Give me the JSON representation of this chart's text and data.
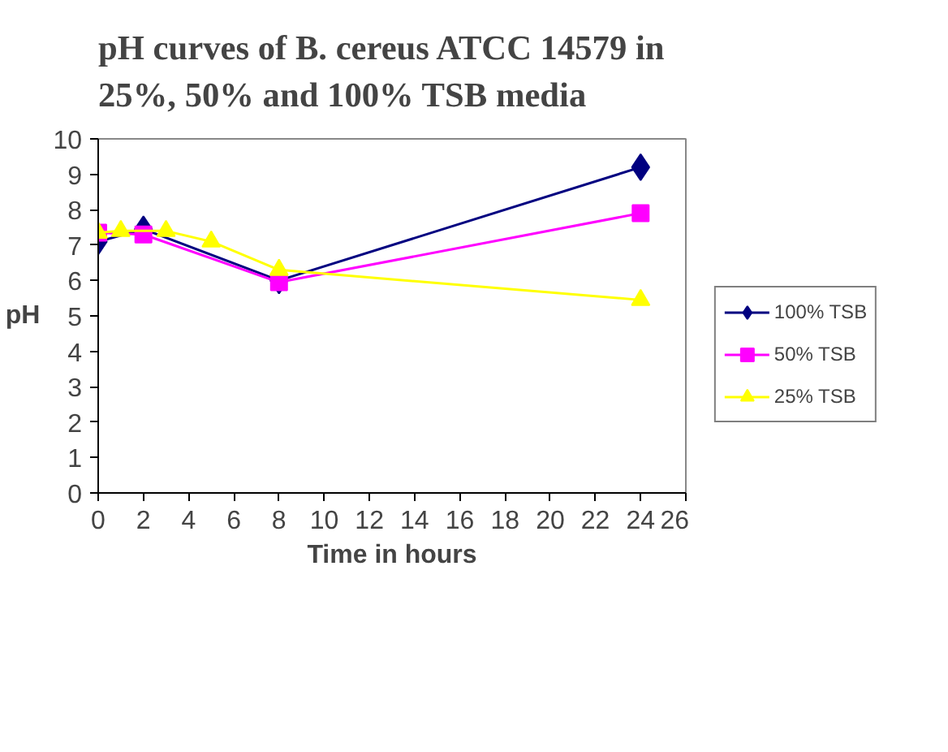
{
  "chart_data": {
    "type": "line",
    "title": "pH curves of B. cereus ATCC 14579 in 25%, 50% and 100% TSB media",
    "xlabel": "Time in hours",
    "ylabel": "pH",
    "xlim": [
      0,
      26
    ],
    "xticks": [
      0,
      2,
      4,
      6,
      8,
      10,
      12,
      14,
      16,
      18,
      20,
      22,
      24,
      26
    ],
    "ylim": [
      0,
      10
    ],
    "yticks": [
      0,
      1,
      2,
      3,
      4,
      5,
      6,
      7,
      8,
      9,
      10
    ],
    "grid": false,
    "legend": "right",
    "series": [
      {
        "name": "100% TSB",
        "color": "#000080",
        "marker": "diamond",
        "x": [
          0,
          2,
          8,
          24
        ],
        "values": [
          7.1,
          7.45,
          6.0,
          9.2
        ]
      },
      {
        "name": "50% TSB",
        "color": "#ff00ff",
        "marker": "square",
        "x": [
          0,
          2,
          8,
          24
        ],
        "values": [
          7.35,
          7.3,
          5.95,
          7.9
        ]
      },
      {
        "name": "25% TSB",
        "color": "#ffff00",
        "marker": "triangle",
        "x": [
          0,
          1,
          3,
          5,
          8,
          24
        ],
        "values": [
          7.35,
          7.4,
          7.4,
          7.1,
          6.3,
          5.45
        ]
      }
    ]
  }
}
